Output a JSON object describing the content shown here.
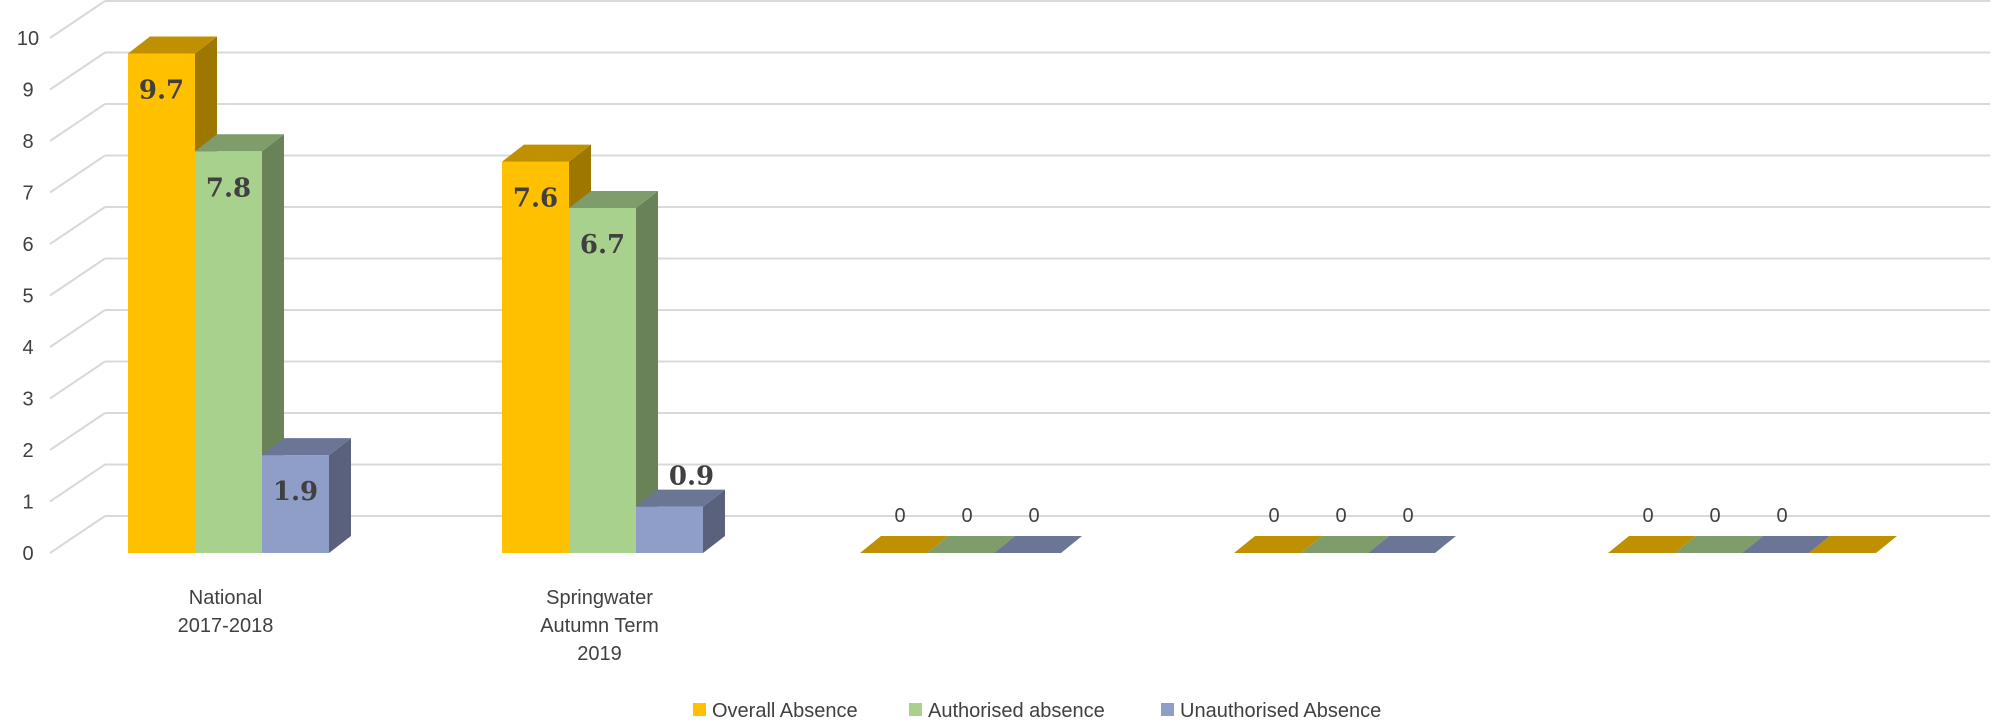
{
  "chart_data": {
    "type": "bar",
    "title": "",
    "xlabel": "",
    "ylabel": "",
    "ylim": [
      0,
      10
    ],
    "yticks": [
      "0",
      "1",
      "2",
      "3",
      "4",
      "5",
      "6",
      "7",
      "8",
      "9",
      "10"
    ],
    "grid": true,
    "legend_position": "bottom",
    "categories": [
      [
        "National",
        "2017-2018"
      ],
      [
        "Springwater",
        "Autumn Term",
        "2019"
      ],
      [],
      [],
      []
    ],
    "series": [
      {
        "name": "Overall Absence",
        "color": "#FFC000",
        "values": [
          9.7,
          7.6,
          0,
          0,
          0
        ],
        "labels": [
          "9.7",
          "7.6",
          "0",
          "0",
          "0"
        ]
      },
      {
        "name": "Authorised absence",
        "color": "#A9D18E",
        "values": [
          7.8,
          6.7,
          0,
          0,
          0
        ],
        "labels": [
          "7.8",
          "6.7",
          "0",
          "0",
          "0"
        ]
      },
      {
        "name": "Unauthorised Absence",
        "color": "#8F9DC9",
        "values": [
          1.9,
          0.9,
          0,
          0,
          0
        ],
        "labels": [
          "1.9",
          "0.9",
          "0",
          "0",
          "0"
        ]
      }
    ]
  }
}
